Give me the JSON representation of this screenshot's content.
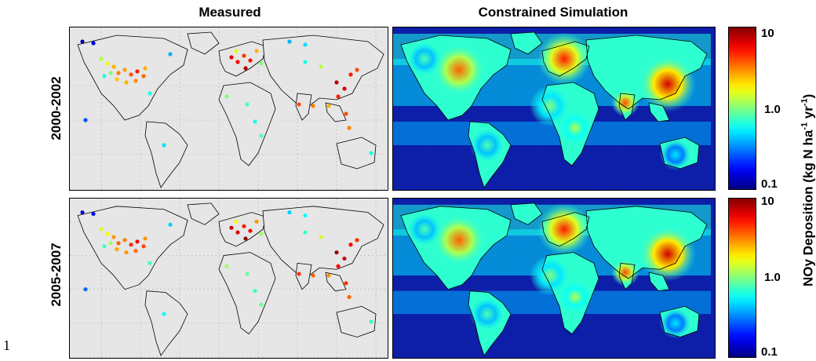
{
  "titles": {
    "measured": "Measured",
    "simulation": "Constrained Simulation"
  },
  "rows": [
    {
      "label": "2000-2002"
    },
    {
      "label": "2005-2007"
    }
  ],
  "colorbar": {
    "label_main": "NOy Deposition (kg N ha",
    "label_exp1": "-1",
    "label_mid": " yr",
    "label_exp2": "-1",
    "label_end": ")",
    "ticks": [
      "10",
      "1.0",
      "0.1"
    ],
    "scale": "log",
    "range": [
      0.1,
      10
    ],
    "colormap": "jet"
  },
  "page_number": "1",
  "colors": {
    "ocean_sim": "#0d1ea8",
    "land_measured_bg": "#e6e6e6",
    "coast": "#000000"
  }
}
